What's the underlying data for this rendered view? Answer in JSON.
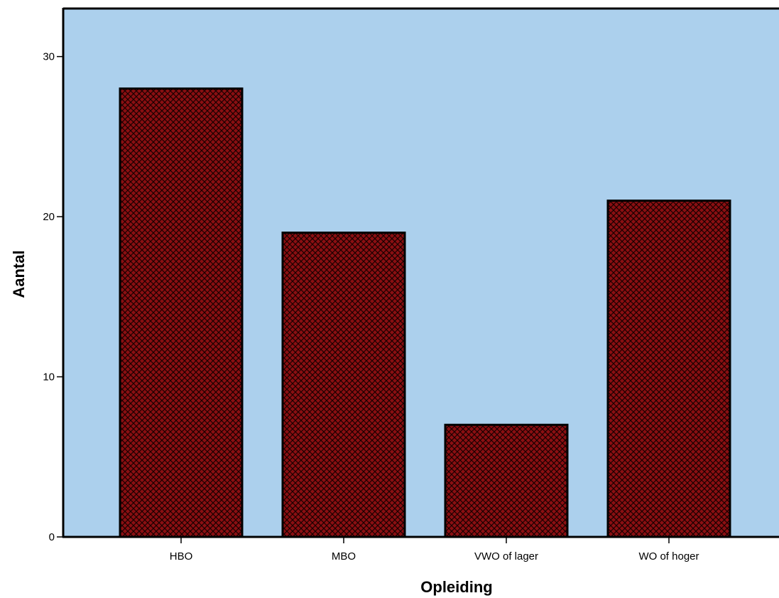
{
  "chart_data": {
    "type": "bar",
    "title": "",
    "xlabel": "Opleiding",
    "ylabel": "Aantal",
    "categories": [
      "HBO",
      "MBO",
      "VWO of lager",
      "WO of hoger"
    ],
    "values": [
      28,
      19,
      7,
      21
    ],
    "ylim": [
      0,
      33
    ],
    "yticks": [
      0,
      10,
      20,
      30
    ],
    "grid": false,
    "legend": "none",
    "colors": {
      "plot_background": "#acd0ed",
      "bar_fill": "#8b0f12",
      "bar_pattern": "crosshatch",
      "bar_edge": "#000000"
    }
  }
}
